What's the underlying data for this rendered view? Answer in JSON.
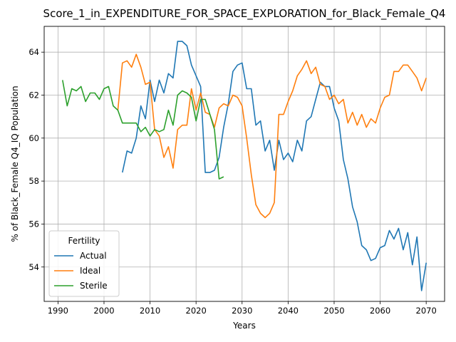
{
  "chart_data": {
    "type": "line",
    "title": "Score_1_in_EXPENDITURE_FOR_SPACE_EXPLORATION_for_Black_Female_Q4",
    "xlabel": "Years",
    "ylabel": "% of Black_Female Q4_IQ Population",
    "xlim": [
      1987,
      2074
    ],
    "ylim": [
      52.4,
      65.2
    ],
    "xticks": [
      1990,
      2000,
      2010,
      2020,
      2030,
      2040,
      2050,
      2060,
      2070
    ],
    "yticks": [
      54,
      56,
      58,
      60,
      62,
      64
    ],
    "grid": true,
    "legend": {
      "title": "Fertility",
      "placement": "lower-left"
    },
    "series": [
      {
        "name": "Actual",
        "color": "#1f77b4",
        "x": [
          2004,
          2005,
          2006,
          2007,
          2008,
          2009,
          2010,
          2011,
          2012,
          2013,
          2014,
          2015,
          2016,
          2017,
          2018,
          2019,
          2020,
          2021,
          2022,
          2023,
          2024,
          2025,
          2026,
          2027,
          2028,
          2029,
          2030,
          2031,
          2032,
          2033,
          2034,
          2035,
          2036,
          2037,
          2038,
          2039,
          2040,
          2041,
          2042,
          2043,
          2044,
          2045,
          2046,
          2047,
          2048,
          2049,
          2050,
          2051,
          2052,
          2053,
          2054,
          2055,
          2056,
          2057,
          2058,
          2059,
          2060,
          2061,
          2062,
          2063,
          2064,
          2065,
          2066,
          2067,
          2068,
          2069,
          2070
        ],
        "y": [
          58.4,
          59.4,
          59.3,
          60.0,
          61.5,
          60.9,
          62.7,
          61.7,
          62.7,
          62.1,
          63.0,
          62.8,
          64.5,
          64.5,
          64.3,
          63.4,
          62.9,
          62.4,
          58.4,
          58.4,
          58.5,
          59.1,
          60.5,
          61.6,
          63.1,
          63.4,
          63.5,
          62.3,
          62.3,
          60.6,
          60.8,
          59.4,
          59.9,
          58.5,
          59.9,
          59.0,
          59.3,
          58.9,
          59.9,
          59.4,
          60.8,
          61.0,
          61.8,
          62.6,
          62.4,
          62.4,
          61.4,
          60.8,
          59.0,
          58.1,
          56.8,
          56.1,
          55.0,
          54.8,
          54.3,
          54.4,
          54.9,
          55.0,
          55.7,
          55.3,
          55.8,
          54.8,
          55.6,
          54.1,
          55.4,
          52.9,
          54.2
        ]
      },
      {
        "name": "Ideal",
        "color": "#ff7f0e",
        "x": [
          2003,
          2004,
          2005,
          2006,
          2007,
          2008,
          2009,
          2010,
          2011,
          2012,
          2013,
          2014,
          2015,
          2016,
          2017,
          2018,
          2019,
          2020,
          2021,
          2022,
          2023,
          2024,
          2025,
          2026,
          2027,
          2028,
          2029,
          2030,
          2031,
          2032,
          2033,
          2034,
          2035,
          2036,
          2037,
          2038,
          2039,
          2040,
          2041,
          2042,
          2043,
          2044,
          2045,
          2046,
          2047,
          2048,
          2049,
          2050,
          2051,
          2052,
          2053,
          2054,
          2055,
          2056,
          2057,
          2058,
          2059,
          2060,
          2061,
          2062,
          2063,
          2064,
          2065,
          2066,
          2067,
          2068,
          2069,
          2070
        ],
        "y": [
          61.3,
          63.5,
          63.6,
          63.3,
          63.9,
          63.3,
          62.5,
          62.6,
          60.4,
          60.1,
          59.1,
          59.6,
          58.6,
          60.4,
          60.6,
          60.6,
          62.3,
          61.3,
          62.1,
          61.2,
          61.1,
          60.5,
          61.4,
          61.6,
          61.5,
          62.0,
          61.9,
          61.5,
          60.0,
          58.3,
          56.9,
          56.5,
          56.3,
          56.5,
          57.0,
          61.1,
          61.1,
          61.7,
          62.2,
          62.9,
          63.2,
          63.6,
          63.0,
          63.3,
          62.5,
          62.4,
          61.8,
          62.0,
          61.6,
          61.8,
          60.7,
          61.2,
          60.6,
          61.1,
          60.5,
          60.9,
          60.7,
          61.4,
          61.9,
          62.0,
          63.1,
          63.1,
          63.4,
          63.4,
          63.1,
          62.8,
          62.2,
          62.8
        ]
      },
      {
        "name": "Sterile",
        "color": "#2ca02c",
        "x": [
          1991,
          1992,
          1993,
          1994,
          1995,
          1996,
          1997,
          1998,
          1999,
          2000,
          2001,
          2002,
          2003,
          2004,
          2005,
          2006,
          2007,
          2008,
          2009,
          2010,
          2011,
          2012,
          2013,
          2014,
          2015,
          2016,
          2017,
          2018,
          2019,
          2020,
          2021,
          2022,
          2023,
          2024,
          2025,
          2026
        ],
        "y": [
          62.7,
          61.5,
          62.3,
          62.2,
          62.4,
          61.7,
          62.1,
          62.1,
          61.8,
          62.3,
          62.4,
          61.5,
          61.3,
          60.7,
          60.7,
          60.7,
          60.7,
          60.3,
          60.5,
          60.1,
          60.4,
          60.3,
          60.4,
          61.3,
          60.6,
          62.0,
          62.2,
          62.1,
          61.9,
          60.8,
          61.8,
          61.8,
          61.1,
          60.4,
          58.1,
          58.2
        ]
      }
    ]
  }
}
